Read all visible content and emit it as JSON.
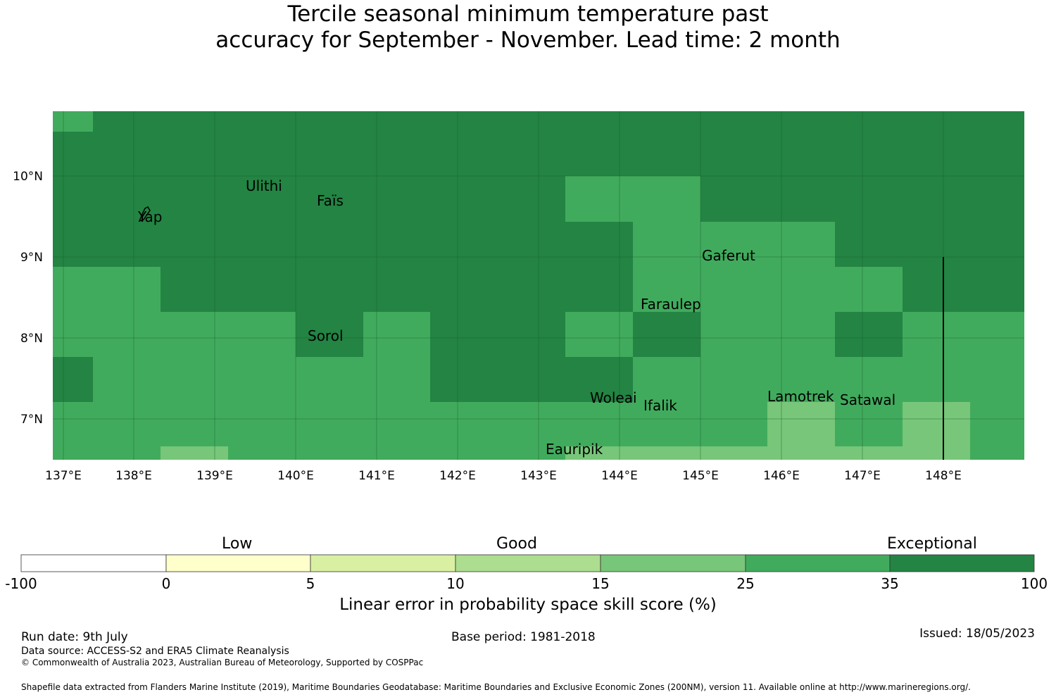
{
  "title": {
    "line1": "Tercile seasonal minimum temperature past",
    "line2": "accuracy for September - November. Lead time: 2 month"
  },
  "map": {
    "lon_ticks": [
      "137°E",
      "138°E",
      "139°E",
      "140°E",
      "141°E",
      "142°E",
      "143°E",
      "144°E",
      "145°E",
      "146°E",
      "147°E",
      "148°E"
    ],
    "lat_ticks": [
      "10°N",
      "9°N",
      "8°N",
      "7°N"
    ],
    "islands": [
      {
        "name": "Yap"
      },
      {
        "name": "Ulithi"
      },
      {
        "name": "Faïs"
      },
      {
        "name": "Gaferut"
      },
      {
        "name": "Faraulep"
      },
      {
        "name": "Sorol"
      },
      {
        "name": "Woleai"
      },
      {
        "name": "Ifalik"
      },
      {
        "name": "Lamotrek"
      },
      {
        "name": "Satawal"
      },
      {
        "name": "Eauripik"
      }
    ]
  },
  "legend": {
    "categories": [
      "Low",
      "Good",
      "Exceptional"
    ],
    "ticks": [
      "-100",
      "0",
      "5",
      "10",
      "15",
      "25",
      "35",
      "100"
    ],
    "colors": [
      "#ffffff",
      "#ffffcc",
      "#d9f0a3",
      "#addd8e",
      "#78c679",
      "#41ab5d",
      "#238443"
    ],
    "axis_label": "Linear error in probability space skill score (%)"
  },
  "footer": {
    "run_date": "Run date: 9th July",
    "base_period": "Base period: 1981-2018",
    "issued": "Issued: 18/05/2023",
    "data_source": "Data source: ACCESS-S2 and ERA5 Climate Reanalysis",
    "copyright": "© Commonwealth of Australia 2023, Australian Bureau of Meteorology, Supported by COSPPac",
    "shapefile": "Shapefile data extracted from Flanders Marine Institute (2019), Maritime Boundaries Geodatabase: Maritime Boundaries and Exclusive Economic Zones (200NM), version 11. Available online at http://www.marineregions.org/."
  }
}
